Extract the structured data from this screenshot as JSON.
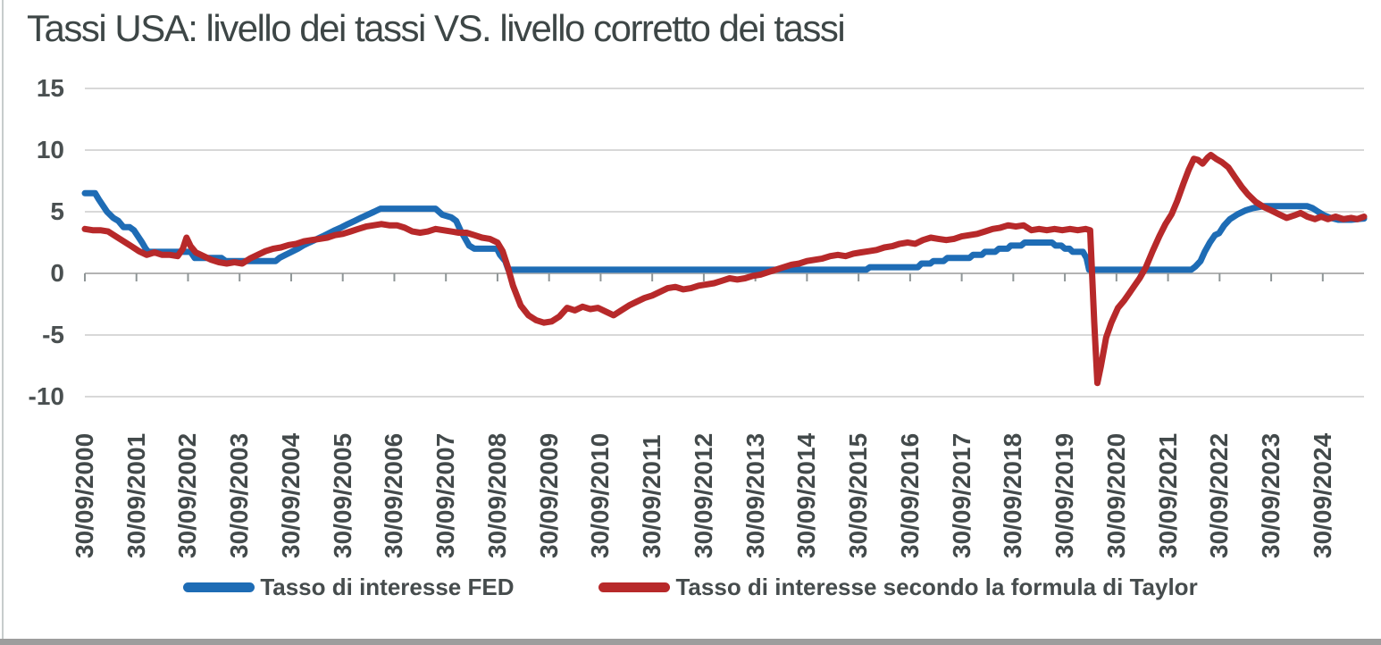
{
  "header": {
    "title": "Tassi USA: livello dei tassi VS. livello corretto dei tassi"
  },
  "chart_data": {
    "type": "line",
    "title": "Tassi USA: livello dei tassi VS. livello corretto dei tassi",
    "xlabel": "",
    "ylabel": "",
    "ylim": [
      -10,
      15
    ],
    "yticks": [
      15,
      10,
      5,
      0,
      -5,
      -10
    ],
    "grid": "horizontal",
    "legend_position": "bottom",
    "x_unit": "decimal_year",
    "x_tick_years": [
      2000.75,
      2001.75,
      2002.75,
      2003.75,
      2004.75,
      2005.75,
      2006.75,
      2007.75,
      2008.75,
      2009.75,
      2010.75,
      2011.75,
      2012.75,
      2013.75,
      2014.75,
      2015.75,
      2016.75,
      2017.75,
      2018.75,
      2019.75,
      2020.75,
      2021.75,
      2022.75,
      2023.75,
      2024.75
    ],
    "x_tick_labels": [
      "30/09/2000",
      "30/09/2001",
      "30/09/2002",
      "30/09/2003",
      "30/09/2004",
      "30/09/2005",
      "30/09/2006",
      "30/09/2007",
      "30/09/2008",
      "30/09/2009",
      "30/09/2010",
      "30/09/2011",
      "30/09/2012",
      "30/09/2013",
      "30/09/2014",
      "30/09/2015",
      "30/09/2016",
      "30/09/2017",
      "30/09/2018",
      "30/09/2019",
      "30/09/2020",
      "30/09/2021",
      "30/09/2022",
      "30/09/2023",
      "30/09/2024"
    ],
    "series": [
      {
        "name": "Tasso di interesse FED",
        "color": "#1e6cb5",
        "points": [
          [
            2000.75,
            6.5
          ],
          [
            2000.95,
            6.5
          ],
          [
            2001.02,
            6.0
          ],
          [
            2001.1,
            5.5
          ],
          [
            2001.18,
            5.0
          ],
          [
            2001.3,
            4.5
          ],
          [
            2001.4,
            4.25
          ],
          [
            2001.5,
            3.75
          ],
          [
            2001.62,
            3.75
          ],
          [
            2001.7,
            3.5
          ],
          [
            2001.78,
            3.0
          ],
          [
            2001.86,
            2.5
          ],
          [
            2001.93,
            2.0
          ],
          [
            2001.98,
            1.75
          ],
          [
            2002.8,
            1.75
          ],
          [
            2002.88,
            1.25
          ],
          [
            2003.4,
            1.25
          ],
          [
            2003.48,
            1.0
          ],
          [
            2004.45,
            1.0
          ],
          [
            2004.52,
            1.25
          ],
          [
            2004.64,
            1.5
          ],
          [
            2004.76,
            1.75
          ],
          [
            2004.88,
            2.0
          ],
          [
            2004.98,
            2.25
          ],
          [
            2005.1,
            2.5
          ],
          [
            2005.23,
            2.75
          ],
          [
            2005.36,
            3.0
          ],
          [
            2005.48,
            3.25
          ],
          [
            2005.6,
            3.5
          ],
          [
            2005.73,
            3.75
          ],
          [
            2005.85,
            4.0
          ],
          [
            2005.98,
            4.25
          ],
          [
            2006.1,
            4.5
          ],
          [
            2006.23,
            4.75
          ],
          [
            2006.36,
            5.0
          ],
          [
            2006.48,
            5.25
          ],
          [
            2007.55,
            5.25
          ],
          [
            2007.68,
            4.75
          ],
          [
            2007.85,
            4.55
          ],
          [
            2007.95,
            4.25
          ],
          [
            2008.03,
            3.5
          ],
          [
            2008.1,
            3.0
          ],
          [
            2008.2,
            2.25
          ],
          [
            2008.3,
            2.0
          ],
          [
            2008.74,
            2.0
          ],
          [
            2008.8,
            1.5
          ],
          [
            2008.9,
            1.0
          ],
          [
            2008.96,
            0.3
          ],
          [
            2015.9,
            0.3
          ],
          [
            2015.97,
            0.5
          ],
          [
            2016.9,
            0.5
          ],
          [
            2016.97,
            0.8
          ],
          [
            2017.14,
            0.8
          ],
          [
            2017.2,
            1.0
          ],
          [
            2017.4,
            1.0
          ],
          [
            2017.47,
            1.25
          ],
          [
            2017.9,
            1.25
          ],
          [
            2017.97,
            1.5
          ],
          [
            2018.14,
            1.5
          ],
          [
            2018.2,
            1.75
          ],
          [
            2018.4,
            1.75
          ],
          [
            2018.47,
            2.0
          ],
          [
            2018.64,
            2.0
          ],
          [
            2018.7,
            2.25
          ],
          [
            2018.9,
            2.25
          ],
          [
            2018.97,
            2.5
          ],
          [
            2019.5,
            2.5
          ],
          [
            2019.57,
            2.25
          ],
          [
            2019.68,
            2.25
          ],
          [
            2019.75,
            2.0
          ],
          [
            2019.84,
            2.0
          ],
          [
            2019.9,
            1.75
          ],
          [
            2020.1,
            1.75
          ],
          [
            2020.17,
            1.25
          ],
          [
            2020.22,
            0.3
          ],
          [
            2022.2,
            0.3
          ],
          [
            2022.28,
            0.55
          ],
          [
            2022.38,
            1.0
          ],
          [
            2022.46,
            1.75
          ],
          [
            2022.56,
            2.5
          ],
          [
            2022.66,
            3.1
          ],
          [
            2022.74,
            3.25
          ],
          [
            2022.84,
            3.9
          ],
          [
            2022.95,
            4.4
          ],
          [
            2023.1,
            4.8
          ],
          [
            2023.25,
            5.1
          ],
          [
            2023.4,
            5.3
          ],
          [
            2023.6,
            5.45
          ],
          [
            2024.45,
            5.45
          ],
          [
            2024.55,
            5.3
          ],
          [
            2024.66,
            5.0
          ],
          [
            2024.78,
            4.7
          ],
          [
            2024.9,
            4.5
          ],
          [
            2025.05,
            4.35
          ],
          [
            2025.3,
            4.35
          ],
          [
            2025.55,
            4.45
          ]
        ]
      },
      {
        "name": "Tasso di interesse secondo la formula di Taylor",
        "color": "#b7292a",
        "points": [
          [
            2000.75,
            3.6
          ],
          [
            2000.9,
            3.5
          ],
          [
            2001.05,
            3.5
          ],
          [
            2001.2,
            3.4
          ],
          [
            2001.35,
            3.0
          ],
          [
            2001.5,
            2.6
          ],
          [
            2001.65,
            2.2
          ],
          [
            2001.8,
            1.8
          ],
          [
            2001.95,
            1.5
          ],
          [
            2002.1,
            1.7
          ],
          [
            2002.25,
            1.5
          ],
          [
            2002.4,
            1.5
          ],
          [
            2002.55,
            1.4
          ],
          [
            2002.65,
            2.0
          ],
          [
            2002.72,
            2.9
          ],
          [
            2002.8,
            2.2
          ],
          [
            2002.9,
            1.7
          ],
          [
            2003.05,
            1.4
          ],
          [
            2003.2,
            1.1
          ],
          [
            2003.35,
            0.9
          ],
          [
            2003.5,
            0.8
          ],
          [
            2003.65,
            0.9
          ],
          [
            2003.8,
            0.8
          ],
          [
            2003.95,
            1.2
          ],
          [
            2004.1,
            1.5
          ],
          [
            2004.25,
            1.8
          ],
          [
            2004.4,
            2.0
          ],
          [
            2004.55,
            2.1
          ],
          [
            2004.7,
            2.3
          ],
          [
            2004.85,
            2.4
          ],
          [
            2005.0,
            2.6
          ],
          [
            2005.15,
            2.7
          ],
          [
            2005.3,
            2.8
          ],
          [
            2005.45,
            2.9
          ],
          [
            2005.6,
            3.1
          ],
          [
            2005.75,
            3.2
          ],
          [
            2005.9,
            3.4
          ],
          [
            2006.05,
            3.6
          ],
          [
            2006.2,
            3.8
          ],
          [
            2006.35,
            3.9
          ],
          [
            2006.5,
            4.0
          ],
          [
            2006.65,
            3.9
          ],
          [
            2006.8,
            3.9
          ],
          [
            2006.95,
            3.7
          ],
          [
            2007.1,
            3.4
          ],
          [
            2007.25,
            3.3
          ],
          [
            2007.4,
            3.4
          ],
          [
            2007.55,
            3.6
          ],
          [
            2007.7,
            3.5
          ],
          [
            2007.85,
            3.4
          ],
          [
            2008.0,
            3.3
          ],
          [
            2008.15,
            3.3
          ],
          [
            2008.3,
            3.1
          ],
          [
            2008.45,
            2.9
          ],
          [
            2008.6,
            2.8
          ],
          [
            2008.75,
            2.5
          ],
          [
            2008.85,
            1.8
          ],
          [
            2008.95,
            0.5
          ],
          [
            2009.05,
            -1.0
          ],
          [
            2009.2,
            -2.6
          ],
          [
            2009.35,
            -3.4
          ],
          [
            2009.5,
            -3.8
          ],
          [
            2009.65,
            -4.0
          ],
          [
            2009.8,
            -3.9
          ],
          [
            2009.95,
            -3.5
          ],
          [
            2010.1,
            -2.8
          ],
          [
            2010.25,
            -3.0
          ],
          [
            2010.4,
            -2.7
          ],
          [
            2010.55,
            -2.9
          ],
          [
            2010.7,
            -2.8
          ],
          [
            2010.85,
            -3.1
          ],
          [
            2011.0,
            -3.4
          ],
          [
            2011.15,
            -3.0
          ],
          [
            2011.3,
            -2.6
          ],
          [
            2011.45,
            -2.3
          ],
          [
            2011.6,
            -2.0
          ],
          [
            2011.75,
            -1.8
          ],
          [
            2011.9,
            -1.5
          ],
          [
            2012.05,
            -1.2
          ],
          [
            2012.2,
            -1.1
          ],
          [
            2012.35,
            -1.3
          ],
          [
            2012.5,
            -1.2
          ],
          [
            2012.65,
            -1.0
          ],
          [
            2012.8,
            -0.9
          ],
          [
            2012.95,
            -0.8
          ],
          [
            2013.1,
            -0.6
          ],
          [
            2013.25,
            -0.4
          ],
          [
            2013.4,
            -0.5
          ],
          [
            2013.55,
            -0.4
          ],
          [
            2013.7,
            -0.2
          ],
          [
            2013.85,
            -0.1
          ],
          [
            2014.0,
            0.1
          ],
          [
            2014.15,
            0.3
          ],
          [
            2014.3,
            0.5
          ],
          [
            2014.45,
            0.7
          ],
          [
            2014.6,
            0.8
          ],
          [
            2014.75,
            1.0
          ],
          [
            2014.9,
            1.1
          ],
          [
            2015.05,
            1.2
          ],
          [
            2015.2,
            1.4
          ],
          [
            2015.35,
            1.5
          ],
          [
            2015.5,
            1.4
          ],
          [
            2015.65,
            1.6
          ],
          [
            2015.8,
            1.7
          ],
          [
            2015.95,
            1.8
          ],
          [
            2016.1,
            1.9
          ],
          [
            2016.25,
            2.1
          ],
          [
            2016.4,
            2.2
          ],
          [
            2016.55,
            2.4
          ],
          [
            2016.7,
            2.5
          ],
          [
            2016.85,
            2.4
          ],
          [
            2017.0,
            2.7
          ],
          [
            2017.15,
            2.9
          ],
          [
            2017.3,
            2.8
          ],
          [
            2017.45,
            2.7
          ],
          [
            2017.6,
            2.8
          ],
          [
            2017.75,
            3.0
          ],
          [
            2017.9,
            3.1
          ],
          [
            2018.05,
            3.2
          ],
          [
            2018.2,
            3.4
          ],
          [
            2018.35,
            3.6
          ],
          [
            2018.5,
            3.7
          ],
          [
            2018.65,
            3.9
          ],
          [
            2018.8,
            3.8
          ],
          [
            2018.95,
            3.9
          ],
          [
            2019.1,
            3.5
          ],
          [
            2019.25,
            3.6
          ],
          [
            2019.4,
            3.5
          ],
          [
            2019.55,
            3.6
          ],
          [
            2019.7,
            3.5
          ],
          [
            2019.85,
            3.6
          ],
          [
            2020.0,
            3.5
          ],
          [
            2020.15,
            3.6
          ],
          [
            2020.24,
            3.5
          ],
          [
            2020.32,
            -4.0
          ],
          [
            2020.38,
            -8.9
          ],
          [
            2020.45,
            -7.5
          ],
          [
            2020.55,
            -5.2
          ],
          [
            2020.65,
            -4.0
          ],
          [
            2020.78,
            -2.8
          ],
          [
            2020.9,
            -2.2
          ],
          [
            2021.0,
            -1.6
          ],
          [
            2021.1,
            -1.0
          ],
          [
            2021.2,
            -0.4
          ],
          [
            2021.32,
            0.5
          ],
          [
            2021.45,
            1.8
          ],
          [
            2021.58,
            3.0
          ],
          [
            2021.7,
            4.0
          ],
          [
            2021.82,
            4.8
          ],
          [
            2021.93,
            5.9
          ],
          [
            2022.05,
            7.3
          ],
          [
            2022.15,
            8.4
          ],
          [
            2022.25,
            9.3
          ],
          [
            2022.33,
            9.2
          ],
          [
            2022.42,
            8.9
          ],
          [
            2022.52,
            9.4
          ],
          [
            2022.58,
            9.6
          ],
          [
            2022.68,
            9.3
          ],
          [
            2022.8,
            9.0
          ],
          [
            2022.92,
            8.6
          ],
          [
            2023.05,
            7.8
          ],
          [
            2023.18,
            7.0
          ],
          [
            2023.3,
            6.4
          ],
          [
            2023.45,
            5.8
          ],
          [
            2023.6,
            5.4
          ],
          [
            2023.75,
            5.1
          ],
          [
            2023.9,
            4.8
          ],
          [
            2024.05,
            4.5
          ],
          [
            2024.2,
            4.7
          ],
          [
            2024.32,
            4.9
          ],
          [
            2024.45,
            4.6
          ],
          [
            2024.6,
            4.4
          ],
          [
            2024.72,
            4.6
          ],
          [
            2024.85,
            4.4
          ],
          [
            2025.0,
            4.6
          ],
          [
            2025.15,
            4.4
          ],
          [
            2025.3,
            4.5
          ],
          [
            2025.42,
            4.4
          ],
          [
            2025.55,
            4.6
          ]
        ]
      }
    ],
    "colors": {
      "grid": "#d8d8d8",
      "axis_line": "#b3b3b3",
      "tick_mark": "#8f9697",
      "title_text": "#3d4646",
      "axis_text": "#434a4b"
    }
  }
}
